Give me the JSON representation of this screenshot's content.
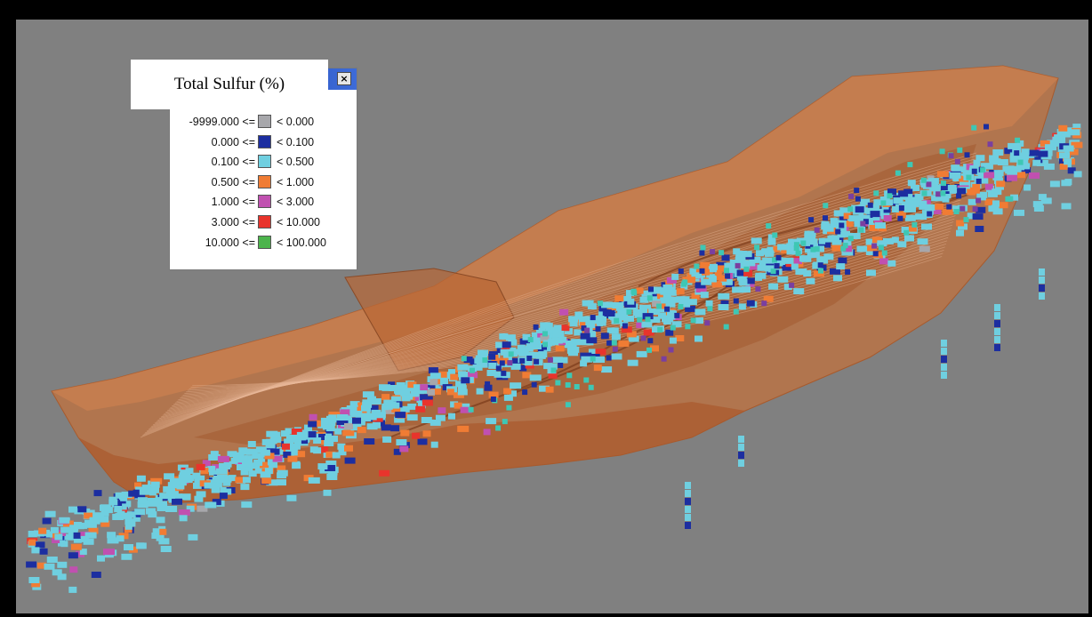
{
  "legend": {
    "title": "Total Sulfur (%)",
    "close_glyph": "×",
    "close_icon": "close-icon",
    "titlebar_color": "#2350c0",
    "items": [
      {
        "low": "-9999.000 <=",
        "high": "< 0.000",
        "color": "#a7a7ab"
      },
      {
        "low": "0.000 <=",
        "high": "< 0.100",
        "color": "#1c2ea0"
      },
      {
        "low": "0.100 <=",
        "high": "< 0.500",
        "color": "#6fcfe0"
      },
      {
        "low": "0.500 <=",
        "high": "< 1.000",
        "color": "#f07c34"
      },
      {
        "low": "1.000 <=",
        "high": "< 3.000",
        "color": "#c050b0"
      },
      {
        "low": "3.000 <=",
        "high": "< 10.000",
        "color": "#e8342c"
      },
      {
        "low": "10.000 <=",
        "high": "< 100.000",
        "color": "#4cb44c"
      }
    ]
  },
  "viewport": {
    "background": "#808080",
    "pit_fill": "#c4703a",
    "pit_dark": "#8a4a26"
  }
}
